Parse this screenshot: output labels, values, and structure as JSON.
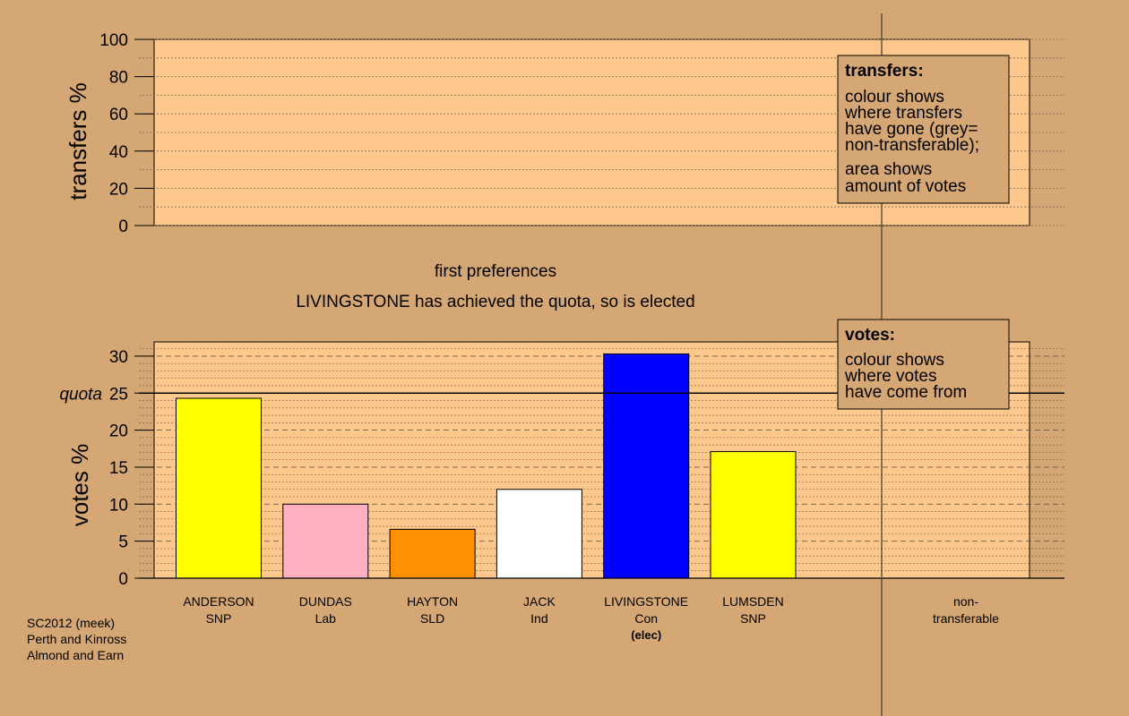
{
  "chart_data": [
    {
      "type": "bar",
      "title": "",
      "ylabel": "transfers %",
      "ylim": [
        0,
        100
      ],
      "yticks": [
        0,
        20,
        40,
        60,
        80,
        100
      ],
      "grid": "dotted",
      "series": [],
      "legend": {
        "position": "top-right",
        "title": "transfers:",
        "lines": [
          "colour shows",
          "where transfers",
          "have gone (grey=",
          "non-transferable);",
          "area shows",
          "amount of votes"
        ]
      }
    },
    {
      "type": "bar",
      "title": "first preferences",
      "subtitle": "LIVINGSTONE has achieved the quota, so is elected",
      "ylabel": "votes %",
      "ylim": [
        0,
        32
      ],
      "yticks": [
        0,
        5,
        10,
        15,
        20,
        25,
        30
      ],
      "quota": 25,
      "quota_label": "quota",
      "grid": "dotted",
      "categories": [
        {
          "name": "ANDERSON",
          "party": "SNP",
          "note": "",
          "value": 24.3,
          "color": "#ffff00"
        },
        {
          "name": "DUNDAS",
          "party": "Lab",
          "note": "",
          "value": 10.0,
          "color": "#ffb0c0"
        },
        {
          "name": "HAYTON",
          "party": "SLD",
          "note": "",
          "value": 6.6,
          "color": "#ff9000"
        },
        {
          "name": "JACK",
          "party": "Ind",
          "note": "",
          "value": 12.0,
          "color": "#ffffff"
        },
        {
          "name": "LIVINGSTONE",
          "party": "Con",
          "note": "(elec)",
          "value": 30.3,
          "color": "#0000ff"
        },
        {
          "name": "LUMSDEN",
          "party": "SNP",
          "note": "",
          "value": 17.1,
          "color": "#ffff00"
        }
      ],
      "nontransferable_label": [
        "non-",
        "transferable"
      ],
      "legend": {
        "position": "top-right",
        "title": "votes:",
        "lines": [
          "colour shows",
          "where votes",
          "have come from"
        ]
      }
    }
  ],
  "footer": {
    "lines": [
      "SC2012 (meek)",
      "Perth and Kinross",
      "Almond and Earn"
    ]
  }
}
